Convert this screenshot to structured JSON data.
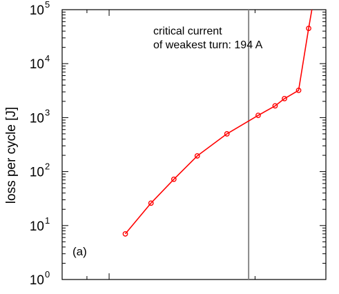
{
  "chart_data": {
    "type": "line",
    "title": "",
    "xlabel": "",
    "ylabel": "loss per cycle [J]",
    "yscale": "log",
    "ylim": [
      1,
      100000
    ],
    "y_ticks": [
      {
        "value": 1,
        "base": "10",
        "exp": "0"
      },
      {
        "value": 10,
        "base": "10",
        "exp": "1"
      },
      {
        "value": 100,
        "base": "10",
        "exp": "2"
      },
      {
        "value": 1000,
        "base": "10",
        "exp": "3"
      },
      {
        "value": 10000,
        "base": "10",
        "exp": "4"
      },
      {
        "value": 100000,
        "base": "10",
        "exp": "5"
      }
    ],
    "xscale": "log",
    "xlim": [
      80,
      280
    ],
    "x_major_ticks": [
      100
    ],
    "x_minor_ticks": [
      90,
      200
    ],
    "grid": false,
    "series": [
      {
        "color": "#ff0000",
        "marker": "circle",
        "x": [
          108,
          122,
          136,
          152,
          175,
          203,
          220,
          230,
          246
        ],
        "y": [
          7,
          26,
          72,
          195,
          500,
          1100,
          1650,
          2250,
          3200
        ]
      }
    ],
    "tail": {
      "x": [
        246,
        258,
        262
      ],
      "y": [
        3200,
        45000,
        100000
      ]
    },
    "tail_marker": {
      "x": 258,
      "y": 45000
    },
    "vline": {
      "x": 194,
      "color": "#888888"
    },
    "annotation": {
      "line1": "critical current",
      "line2": "of weakest turn: 194 A"
    },
    "panel_label": "(a)"
  }
}
